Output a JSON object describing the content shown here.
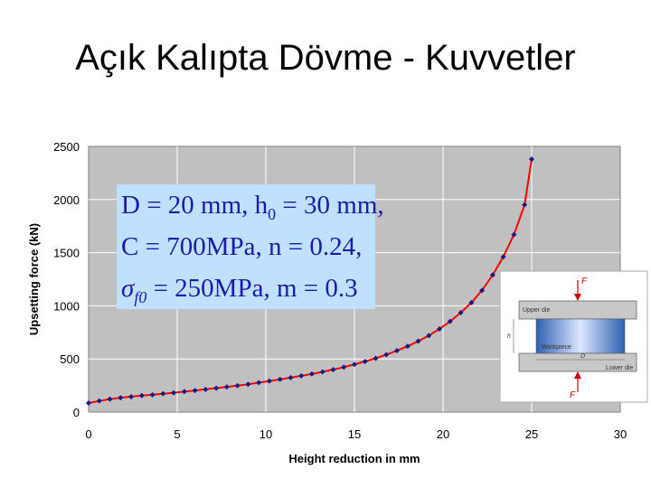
{
  "slide": {
    "title": "Açık Kalıpta Dövme - Kuvvetler"
  },
  "chart_data": {
    "type": "line",
    "title": "",
    "xlabel": "Height reduction in mm",
    "ylabel": "Upsetting force (kN)",
    "xlim": [
      0,
      30
    ],
    "ylim": [
      0,
      2500
    ],
    "xticks": [
      0,
      5,
      10,
      15,
      20,
      25,
      30
    ],
    "yticks": [
      0,
      500,
      1000,
      1500,
      2000,
      2500
    ],
    "grid": true,
    "legend": "none",
    "series": [
      {
        "color": "#ff0000",
        "marker_color": "#1a1a80",
        "x": [
          0,
          0.6,
          1.2,
          1.8,
          2.4,
          3.0,
          3.6,
          4.2,
          4.8,
          5.4,
          6.0,
          6.6,
          7.2,
          7.8,
          8.4,
          9.0,
          9.6,
          10.2,
          10.8,
          11.4,
          12.0,
          12.6,
          13.2,
          13.8,
          14.4,
          15.0,
          15.6,
          16.2,
          16.8,
          17.4,
          18.0,
          18.6,
          19.2,
          19.8,
          20.4,
          21.0,
          21.6,
          22.2,
          22.8,
          23.4,
          24.0,
          24.6,
          25.0
        ],
        "y": [
          85,
          105,
          122,
          135,
          145,
          155,
          163,
          173,
          182,
          192,
          203,
          214,
          225,
          237,
          249,
          262,
          277,
          292,
          308,
          324,
          341,
          359,
          378,
          400,
          423,
          449,
          476,
          506,
          540,
          578,
          620,
          667,
          720,
          782,
          853,
          935,
          1030,
          1145,
          1290,
          1460,
          1670,
          1950,
          2380
        ]
      }
    ],
    "annotations": [
      "D = 20 mm, h0 = 30 mm,",
      "C = 700MPa, n = 0.24,",
      "σf0 = 250MPa, m = 0.3"
    ]
  },
  "formula_box": {
    "line1": "D = 20 mm, h",
    "line1_sub": "0",
    "line1_end": " = 30 mm,",
    "line2": "C = 700MPa, n = 0.24,",
    "line3_sym": "σ",
    "line3_sub": "f0",
    "line3_end": " = 250MPa, m = 0.3",
    "bg": "#bfe0ff",
    "text_color": "#1a1aa8"
  },
  "inset": {
    "force_top": "F",
    "force_bottom": "F",
    "upper_die": "Upper die",
    "workpiece": "Workpiece",
    "lower_die": "Lower die",
    "h_symbol": "h",
    "d_symbol": "D"
  },
  "colors": {
    "plot_bg": "#c0c0c0",
    "grid": "#ffffff",
    "line": "#ff0000",
    "marker": "#1a1a80"
  }
}
